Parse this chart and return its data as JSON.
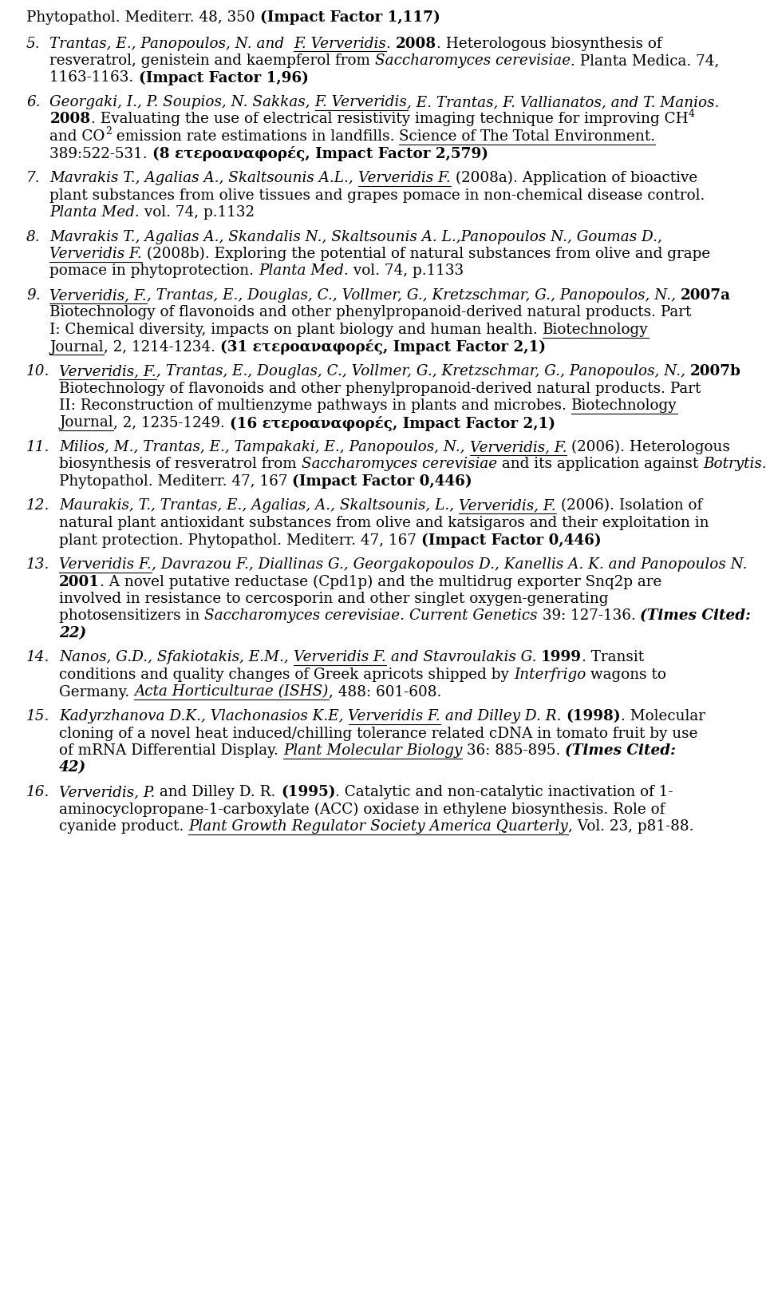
{
  "bg": "#ffffff",
  "fs": 13.2,
  "lh": 21.5,
  "ph": 9.0,
  "ml": 33,
  "mr": 927,
  "figw": 9.6,
  "figh": 16.28,
  "dpi": 100
}
